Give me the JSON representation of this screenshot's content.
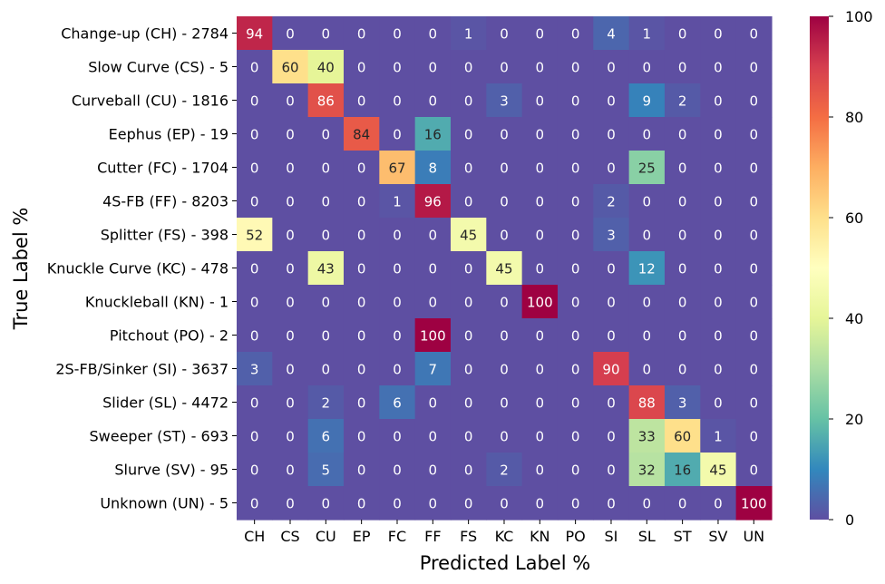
{
  "chart_data": {
    "type": "heatmap",
    "xlabel": "Predicted Label %",
    "ylabel": "True Label %",
    "x_categories": [
      "CH",
      "CS",
      "CU",
      "EP",
      "FC",
      "FF",
      "FS",
      "KC",
      "KN",
      "PO",
      "SI",
      "SL",
      "ST",
      "SV",
      "UN"
    ],
    "y_categories": [
      "Change-up (CH) - 2784",
      "Slow Curve (CS) - 5",
      "Curveball (CU) - 1816",
      "Eephus (EP) - 19",
      "Cutter (FC) - 1704",
      "4S-FB (FF) - 8203",
      "Splitter (FS) - 398",
      "Knuckle Curve (KC) - 478",
      "Knuckleball (KN) - 1",
      "Pitchout (PO) - 2",
      "2S-FB/Sinker (SI) - 3637",
      "Slider (SL) - 4472",
      "Sweeper (ST) - 693",
      "Slurve (SV) - 95",
      "Unknown (UN) - 5"
    ],
    "values": [
      [
        94,
        0,
        0,
        0,
        0,
        0,
        1,
        0,
        0,
        0,
        4,
        1,
        0,
        0,
        0
      ],
      [
        0,
        60,
        40,
        0,
        0,
        0,
        0,
        0,
        0,
        0,
        0,
        0,
        0,
        0,
        0
      ],
      [
        0,
        0,
        86,
        0,
        0,
        0,
        0,
        3,
        0,
        0,
        0,
        9,
        2,
        0,
        0
      ],
      [
        0,
        0,
        0,
        84,
        0,
        16,
        0,
        0,
        0,
        0,
        0,
        0,
        0,
        0,
        0
      ],
      [
        0,
        0,
        0,
        0,
        67,
        8,
        0,
        0,
        0,
        0,
        0,
        25,
        0,
        0,
        0
      ],
      [
        0,
        0,
        0,
        0,
        1,
        96,
        0,
        0,
        0,
        0,
        2,
        0,
        0,
        0,
        0
      ],
      [
        52,
        0,
        0,
        0,
        0,
        0,
        45,
        0,
        0,
        0,
        3,
        0,
        0,
        0,
        0
      ],
      [
        0,
        0,
        43,
        0,
        0,
        0,
        0,
        45,
        0,
        0,
        0,
        12,
        0,
        0,
        0
      ],
      [
        0,
        0,
        0,
        0,
        0,
        0,
        0,
        0,
        100,
        0,
        0,
        0,
        0,
        0,
        0
      ],
      [
        0,
        0,
        0,
        0,
        0,
        100,
        0,
        0,
        0,
        0,
        0,
        0,
        0,
        0,
        0
      ],
      [
        3,
        0,
        0,
        0,
        0,
        7,
        0,
        0,
        0,
        0,
        90,
        0,
        0,
        0,
        0
      ],
      [
        0,
        0,
        2,
        0,
        6,
        0,
        0,
        0,
        0,
        0,
        0,
        88,
        3,
        0,
        0
      ],
      [
        0,
        0,
        6,
        0,
        0,
        0,
        0,
        0,
        0,
        0,
        0,
        33,
        60,
        1,
        0
      ],
      [
        0,
        0,
        5,
        0,
        0,
        0,
        0,
        2,
        0,
        0,
        0,
        32,
        16,
        45,
        0
      ],
      [
        0,
        0,
        0,
        0,
        0,
        0,
        0,
        0,
        0,
        0,
        0,
        0,
        0,
        0,
        100
      ]
    ],
    "colormap": "Spectral_r",
    "vmin": 0,
    "vmax": 100,
    "colorbar_ticks": [
      0,
      20,
      40,
      60,
      80,
      100
    ]
  }
}
